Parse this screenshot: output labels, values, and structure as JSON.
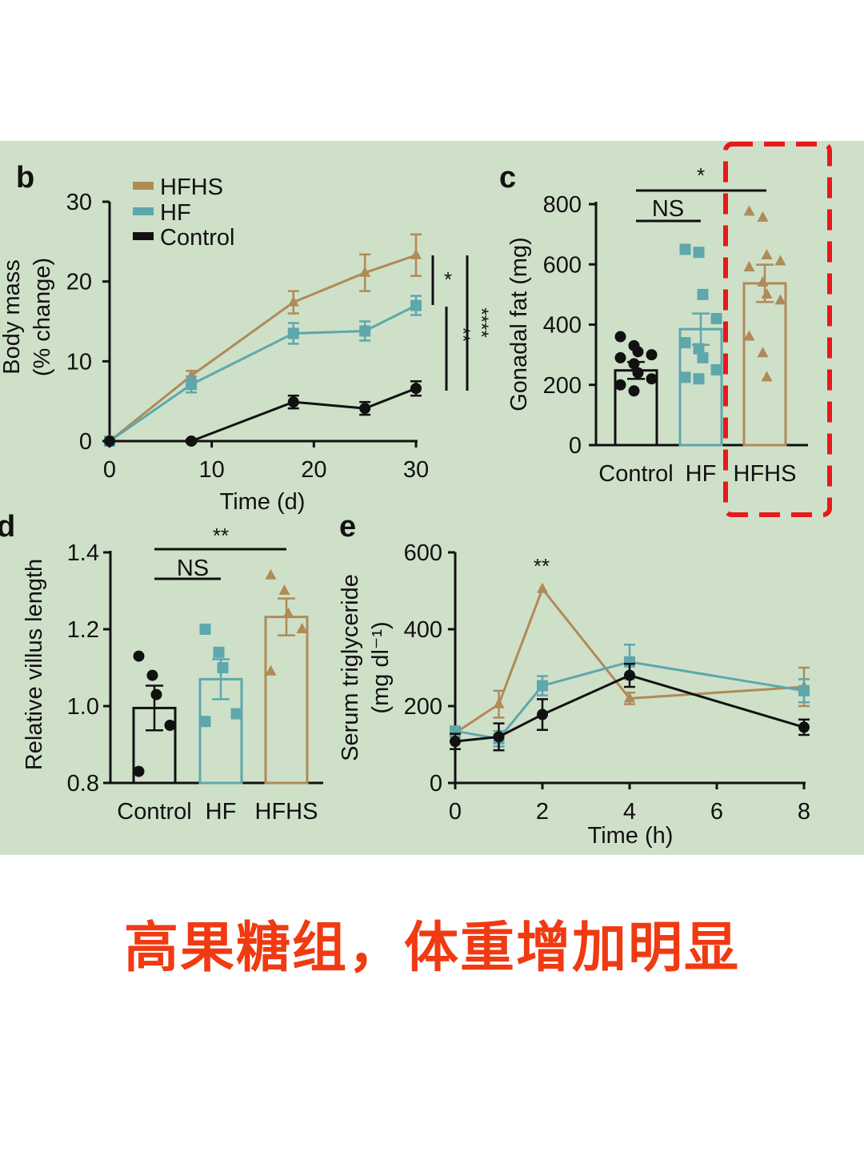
{
  "caption": "高果糖组，体重增加明显",
  "colors": {
    "HFHS": "#b08a57",
    "HF": "#5ea7ad",
    "Control": "#111111",
    "highlight": "#e8181c",
    "background": "#cfe0c9"
  },
  "chart_data": [
    {
      "panel": "b",
      "type": "line",
      "xlabel": "Time (d)",
      "ylabel": "Body mass",
      "ylabel2": "(% change)",
      "xticks": [
        "0",
        "10",
        "20",
        "30"
      ],
      "yticks": [
        "0",
        "10",
        "20",
        "30"
      ],
      "xlim": [
        0,
        30
      ],
      "ylim": [
        0,
        30
      ],
      "legend": [
        "HFHS",
        "HF",
        "Control"
      ],
      "series": [
        {
          "name": "HFHS",
          "x": [
            0,
            8,
            18,
            25,
            30
          ],
          "values": [
            0,
            8.2,
            17.4,
            21.1,
            23.3
          ],
          "err": [
            0,
            0.6,
            1.4,
            2.3,
            2.6
          ]
        },
        {
          "name": "HF",
          "x": [
            0,
            8,
            18,
            25,
            30
          ],
          "values": [
            0,
            7.1,
            13.5,
            13.8,
            17.0
          ],
          "err": [
            0,
            1.0,
            1.3,
            1.2,
            1.2
          ]
        },
        {
          "name": "Control",
          "x": [
            0,
            8,
            18,
            25,
            30
          ],
          "values": [
            0,
            0,
            4.9,
            4.1,
            6.6
          ],
          "err": [
            0,
            0.2,
            0.8,
            0.8,
            0.9
          ]
        }
      ],
      "significance": [
        "*",
        "**",
        "****"
      ]
    },
    {
      "panel": "c",
      "type": "bar",
      "ylabel": "Gonadal fat (mg)",
      "categories": [
        "Control",
        "HF",
        "HFHS"
      ],
      "values": [
        248,
        385,
        537
      ],
      "err": [
        28,
        52,
        62
      ],
      "yticks": [
        "0",
        "200",
        "400",
        "600",
        "800"
      ],
      "ylim": [
        0,
        800
      ],
      "points": [
        [
          360,
          330,
          310,
          300,
          290,
          270,
          240,
          220,
          200,
          180
        ],
        [
          650,
          640,
          500,
          420,
          340,
          320,
          290,
          250,
          225,
          220
        ],
        [
          775,
          755,
          630,
          610,
          590,
          540,
          500,
          480,
          360,
          305,
          225
        ]
      ],
      "significance": [
        "*",
        "NS"
      ]
    },
    {
      "panel": "d",
      "type": "bar",
      "ylabel": "Relative villus length",
      "categories": [
        "Control",
        "HF",
        "HFHS"
      ],
      "values": [
        0.995,
        1.07,
        1.232
      ],
      "err": [
        0.058,
        0.052,
        0.048
      ],
      "yticks": [
        "0.8",
        "1.0",
        "1.2",
        "1.4"
      ],
      "ylim": [
        0.8,
        1.4
      ],
      "points": [
        [
          1.13,
          1.08,
          1.03,
          0.95,
          0.83
        ],
        [
          1.2,
          1.14,
          1.1,
          0.98,
          0.96
        ],
        [
          1.34,
          1.3,
          1.24,
          1.2,
          1.09
        ]
      ],
      "significance": [
        "**",
        "NS"
      ]
    },
    {
      "panel": "e",
      "type": "line",
      "xlabel": "Time (h)",
      "ylabel": "Serum triglyceride",
      "ylabel2": "(mg dl⁻¹)",
      "xticks": [
        "0",
        "2",
        "4",
        "6",
        "8"
      ],
      "yticks": [
        "0",
        "200",
        "400",
        "600"
      ],
      "xlim": [
        0,
        8
      ],
      "ylim": [
        0,
        600
      ],
      "series": [
        {
          "name": "HFHS",
          "x": [
            0,
            1,
            2,
            4,
            8
          ],
          "values": [
            130,
            205,
            505,
            220,
            250
          ],
          "err": [
            10,
            35,
            0,
            15,
            50
          ]
        },
        {
          "name": "HF",
          "x": [
            0,
            1,
            2,
            4,
            8
          ],
          "values": [
            135,
            115,
            253,
            315,
            240
          ],
          "err": [
            10,
            20,
            25,
            45,
            30
          ]
        },
        {
          "name": "Control",
          "x": [
            0,
            1,
            2,
            4,
            8
          ],
          "values": [
            108,
            120,
            178,
            280,
            145
          ],
          "err": [
            20,
            35,
            40,
            30,
            20
          ]
        }
      ],
      "significance": [
        "**"
      ]
    }
  ]
}
